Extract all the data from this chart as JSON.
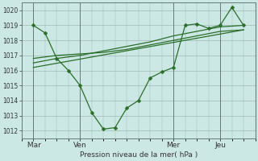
{
  "bg_color": "#cce8e4",
  "grid_color": "#a0b8b4",
  "line_color": "#2a6e2a",
  "xlabel": "Pression niveau de la mer( hPa )",
  "ylim": [
    1011.5,
    1020.5
  ],
  "yticks": [
    1012,
    1013,
    1014,
    1015,
    1016,
    1017,
    1018,
    1019,
    1020
  ],
  "xtick_labels": [
    " Mar",
    "Ven",
    "Mer",
    "Jeu"
  ],
  "xtick_positions": [
    0,
    24,
    72,
    96
  ],
  "xlim": [
    -6,
    114
  ],
  "vlines": [
    0,
    24,
    72,
    96
  ],
  "series1_x": [
    0,
    6,
    12,
    18,
    24,
    30,
    36,
    42,
    48,
    54,
    60,
    66,
    72,
    78,
    84,
    90,
    96,
    102,
    108
  ],
  "series1_y": [
    1019.0,
    1018.5,
    1016.8,
    1016.0,
    1015.0,
    1013.2,
    1012.1,
    1012.2,
    1013.5,
    1014.0,
    1015.5,
    1015.9,
    1016.2,
    1019.0,
    1019.1,
    1018.8,
    1019.0,
    1020.2,
    1019.0
  ],
  "series2_x": [
    0,
    12,
    24,
    36,
    48,
    60,
    72,
    84,
    96,
    108
  ],
  "series2_y": [
    1016.8,
    1017.0,
    1017.1,
    1017.2,
    1017.4,
    1017.7,
    1018.0,
    1018.3,
    1018.6,
    1018.7
  ],
  "series3_x": [
    0,
    12,
    24,
    36,
    48,
    60,
    72,
    84,
    96,
    108
  ],
  "series3_y": [
    1016.5,
    1016.8,
    1017.0,
    1017.3,
    1017.6,
    1017.9,
    1018.3,
    1018.6,
    1018.9,
    1019.0
  ],
  "series4_x": [
    0,
    108
  ],
  "series4_y": [
    1016.2,
    1018.7
  ]
}
